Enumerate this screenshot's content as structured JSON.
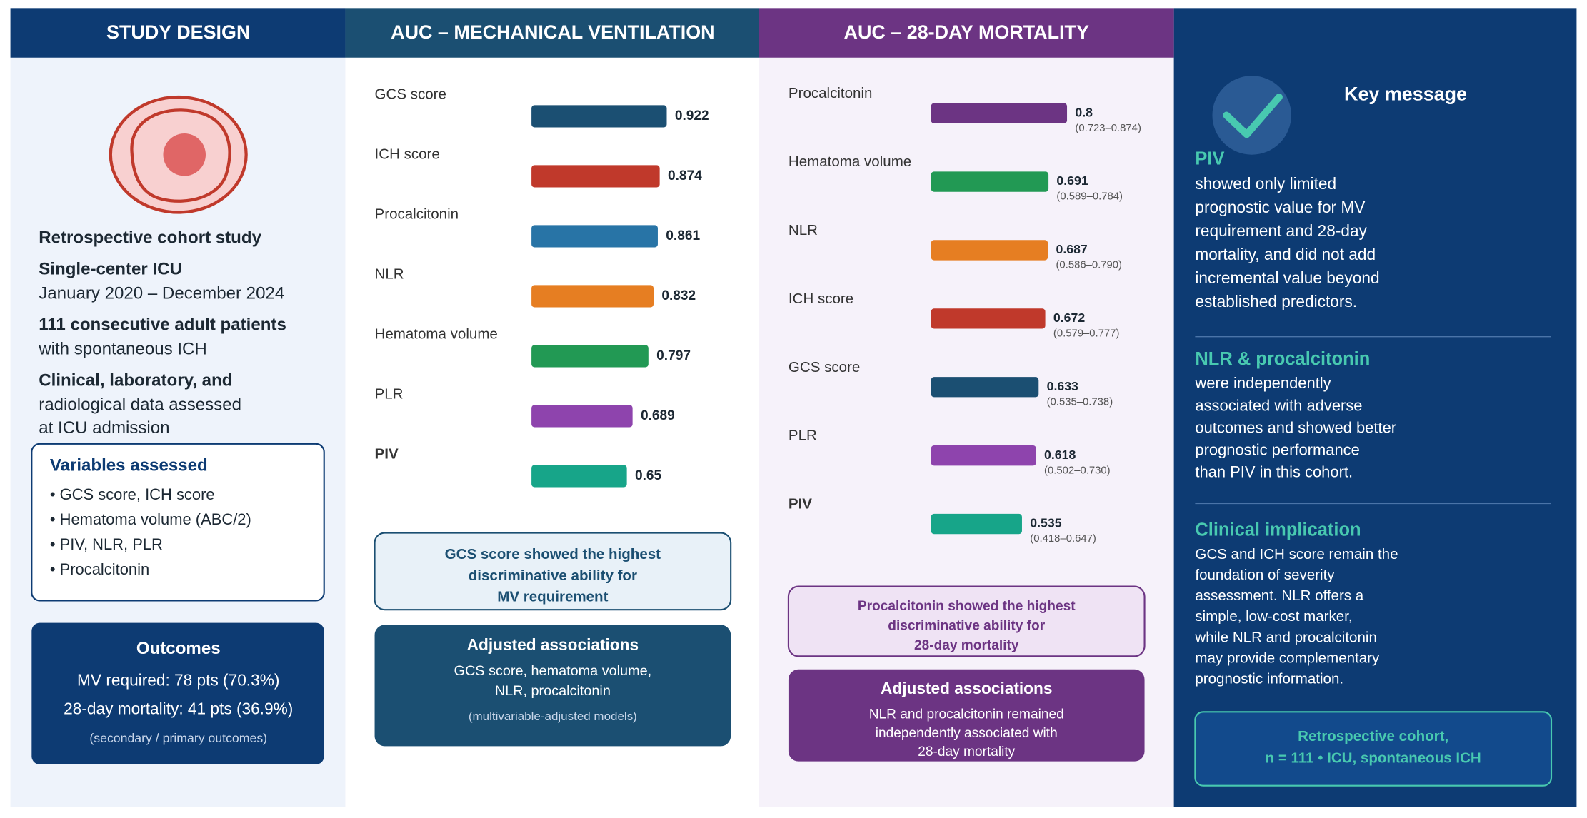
{
  "study_design": {
    "header": "STUDY DESIGN",
    "text_lines": [
      {
        "text": "Retrospective cohort study",
        "bold": true
      },
      {
        "text": "Single-center ICU",
        "bold": true
      },
      {
        "text": "January 2020 – December 2024",
        "bold": false
      },
      {
        "text": "111 consecutive adult patients",
        "bold": true
      },
      {
        "text": "with spontaneous ICH",
        "bold": false
      },
      {
        "text": "Clinical, laboratory, and",
        "bold": true
      },
      {
        "text": "radiological data assessed",
        "bold": false
      },
      {
        "text": "at ICU admission",
        "bold": false
      }
    ],
    "variables": {
      "title": "Variables assessed",
      "items": [
        "• GCS score, ICH score",
        "• Hematoma volume (ABC/2)",
        "• PIV, NLR, PLR",
        "• Procalcitonin"
      ]
    },
    "outcomes": {
      "title": "Outcomes",
      "lines": [
        "MV required: 78 pts (70.3%)",
        "28-day mortality: 41 pts (36.9%)"
      ],
      "note": "(secondary / primary outcomes)"
    }
  },
  "mechanical_ventilation": {
    "note_lines": [
      "GCS score showed the highest",
      "discriminative ability for",
      "MV requirement"
    ],
    "adjusted": {
      "title": "Adjusted associations",
      "lines": [
        "GCS score, hematoma volume,",
        "NLR, procalcitonin"
      ],
      "note": "(multivariable-adjusted models)"
    }
  },
  "mortality": {
    "note_lines": [
      "Procalcitonin showed the highest",
      "discriminative ability for",
      "28-day mortality"
    ],
    "adjusted": {
      "title": "Adjusted associations",
      "lines": [
        "NLR and procalcitonin remained",
        "independently associated with",
        "28-day mortality"
      ]
    }
  },
  "key_message": {
    "title": "Key message",
    "sections": [
      {
        "heading": "PIV",
        "lines": [
          "showed only limited",
          "prognostic value for MV",
          "requirement and 28-day",
          "mortality, and did not add",
          "incremental value beyond",
          "established predictors."
        ]
      },
      {
        "heading": "NLR & procalcitonin",
        "lines": [
          "were independently",
          "associated with adverse",
          "outcomes and showed better",
          "prognostic performance",
          "than PIV in this cohort."
        ]
      },
      {
        "heading": "Clinical implication",
        "lines": [
          "GCS and ICH score remain the",
          "foundation of severity",
          "assessment. NLR offers a",
          "simple, low-cost marker,",
          "while NLR and procalcitonin",
          "may provide complementary",
          "prognostic information."
        ]
      }
    ],
    "footer_lines": [
      "Retrospective cohort,",
      "n = 111 • ICU, spontaneous ICH"
    ]
  },
  "chart_data": [
    {
      "type": "bar",
      "title": "AUC – MECHANICAL VENTILATION",
      "categories": [
        "GCS score",
        "ICH score",
        "Procalcitonin",
        "NLR",
        "Hematoma volume",
        "PLR",
        "PIV"
      ],
      "values": [
        0.922,
        0.874,
        0.861,
        0.832,
        0.797,
        0.689,
        0.65
      ],
      "colors": [
        "#1b4f72",
        "#c0392b",
        "#2874a6",
        "#e67e22",
        "#229954",
        "#8e44ad",
        "#17a589"
      ]
    },
    {
      "type": "bar",
      "title": "AUC – 28-DAY MORTALITY",
      "categories": [
        "Procalcitonin",
        "Hematoma volume",
        "NLR",
        "ICH score",
        "GCS score",
        "PLR",
        "PIV"
      ],
      "values": [
        0.8,
        0.691,
        0.687,
        0.672,
        0.633,
        0.618,
        0.535
      ],
      "intervals": [
        "(0.723–0.874)",
        "(0.589–0.784)",
        "(0.586–0.790)",
        "(0.579–0.777)",
        "(0.535–0.738)",
        "(0.502–0.730)",
        "(0.418–0.647)"
      ],
      "colors": [
        "#6c3483",
        "#229954",
        "#e67e22",
        "#c0392b",
        "#1b4f72",
        "#8e44ad",
        "#17a589"
      ]
    }
  ]
}
